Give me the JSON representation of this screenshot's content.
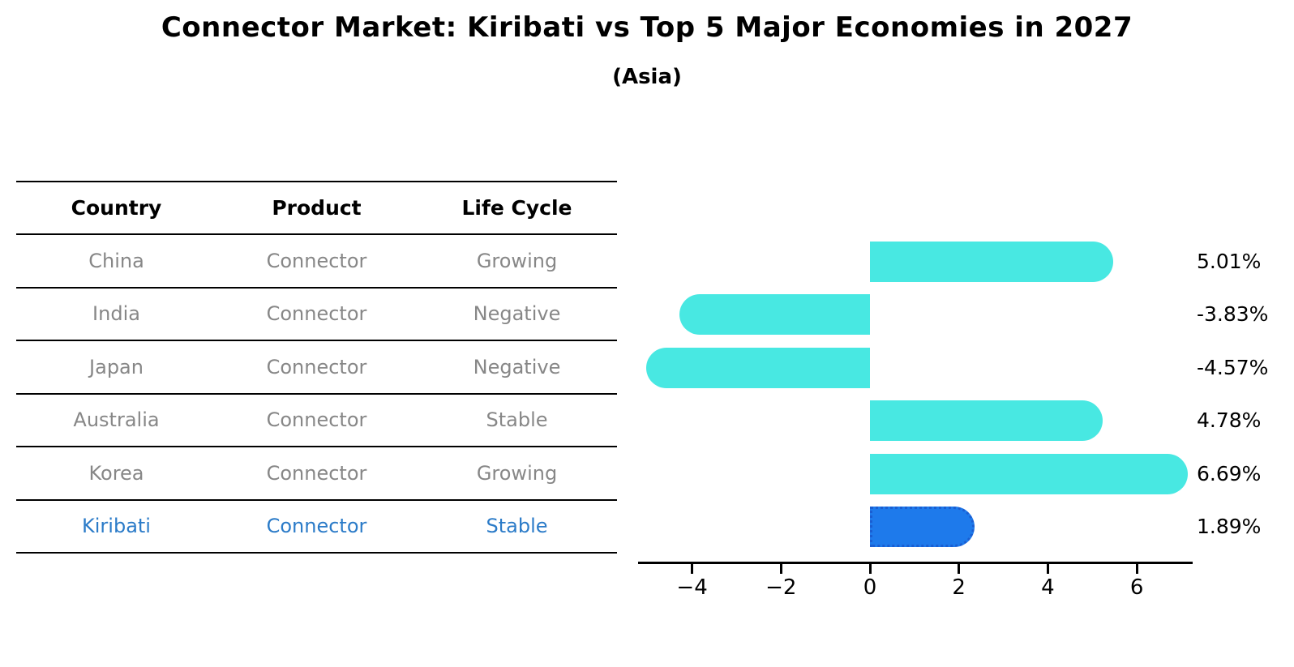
{
  "title": "Connector Market: Kiribati vs Top 5 Major Economies in 2027",
  "subtitle": "(Asia)",
  "table": {
    "headers": [
      "Country",
      "Product",
      "Life Cycle"
    ],
    "rows": [
      {
        "country": "China",
        "product": "Connector",
        "life_cycle": "Growing",
        "highlight": false
      },
      {
        "country": "India",
        "product": "Connector",
        "life_cycle": "Negative",
        "highlight": false
      },
      {
        "country": "Japan",
        "product": "Connector",
        "life_cycle": "Negative",
        "highlight": false
      },
      {
        "country": "Australia",
        "product": "Connector",
        "life_cycle": "Stable",
        "highlight": false
      },
      {
        "country": "Korea",
        "product": "Connector",
        "life_cycle": "Growing",
        "highlight": false
      },
      {
        "country": "Kiribati",
        "product": "Connector",
        "life_cycle": "Stable",
        "highlight": true
      }
    ]
  },
  "chart_data": {
    "type": "bar",
    "orientation": "horizontal",
    "title": "Connector Market: Kiribati vs Top 5 Major Economies in 2027",
    "subtitle": "(Asia)",
    "categories": [
      "China",
      "India",
      "Japan",
      "Australia",
      "Korea",
      "Kiribati"
    ],
    "values": [
      5.01,
      -3.83,
      -4.57,
      4.78,
      6.69,
      1.89
    ],
    "value_labels": [
      "5.01%",
      "-3.83%",
      "-4.57%",
      "4.78%",
      "6.69%",
      "1.89%"
    ],
    "x_ticks": [
      "−4",
      "−2",
      "0",
      "2",
      "4",
      "6"
    ],
    "x_tick_values": [
      -4,
      -2,
      0,
      2,
      4,
      6
    ],
    "xlim": [
      -5.2,
      7.25
    ],
    "grid": false,
    "legend": false,
    "bar_color": "#48E8E2",
    "highlight_color": "#1E7AEB",
    "highlight_edge_color": "#1A5ED2",
    "highlight_index": 5
  },
  "colors": {
    "background": "#FFFFFF",
    "table_text": "#878787",
    "highlight_text": "#2B7BC8",
    "line": "#000000"
  }
}
